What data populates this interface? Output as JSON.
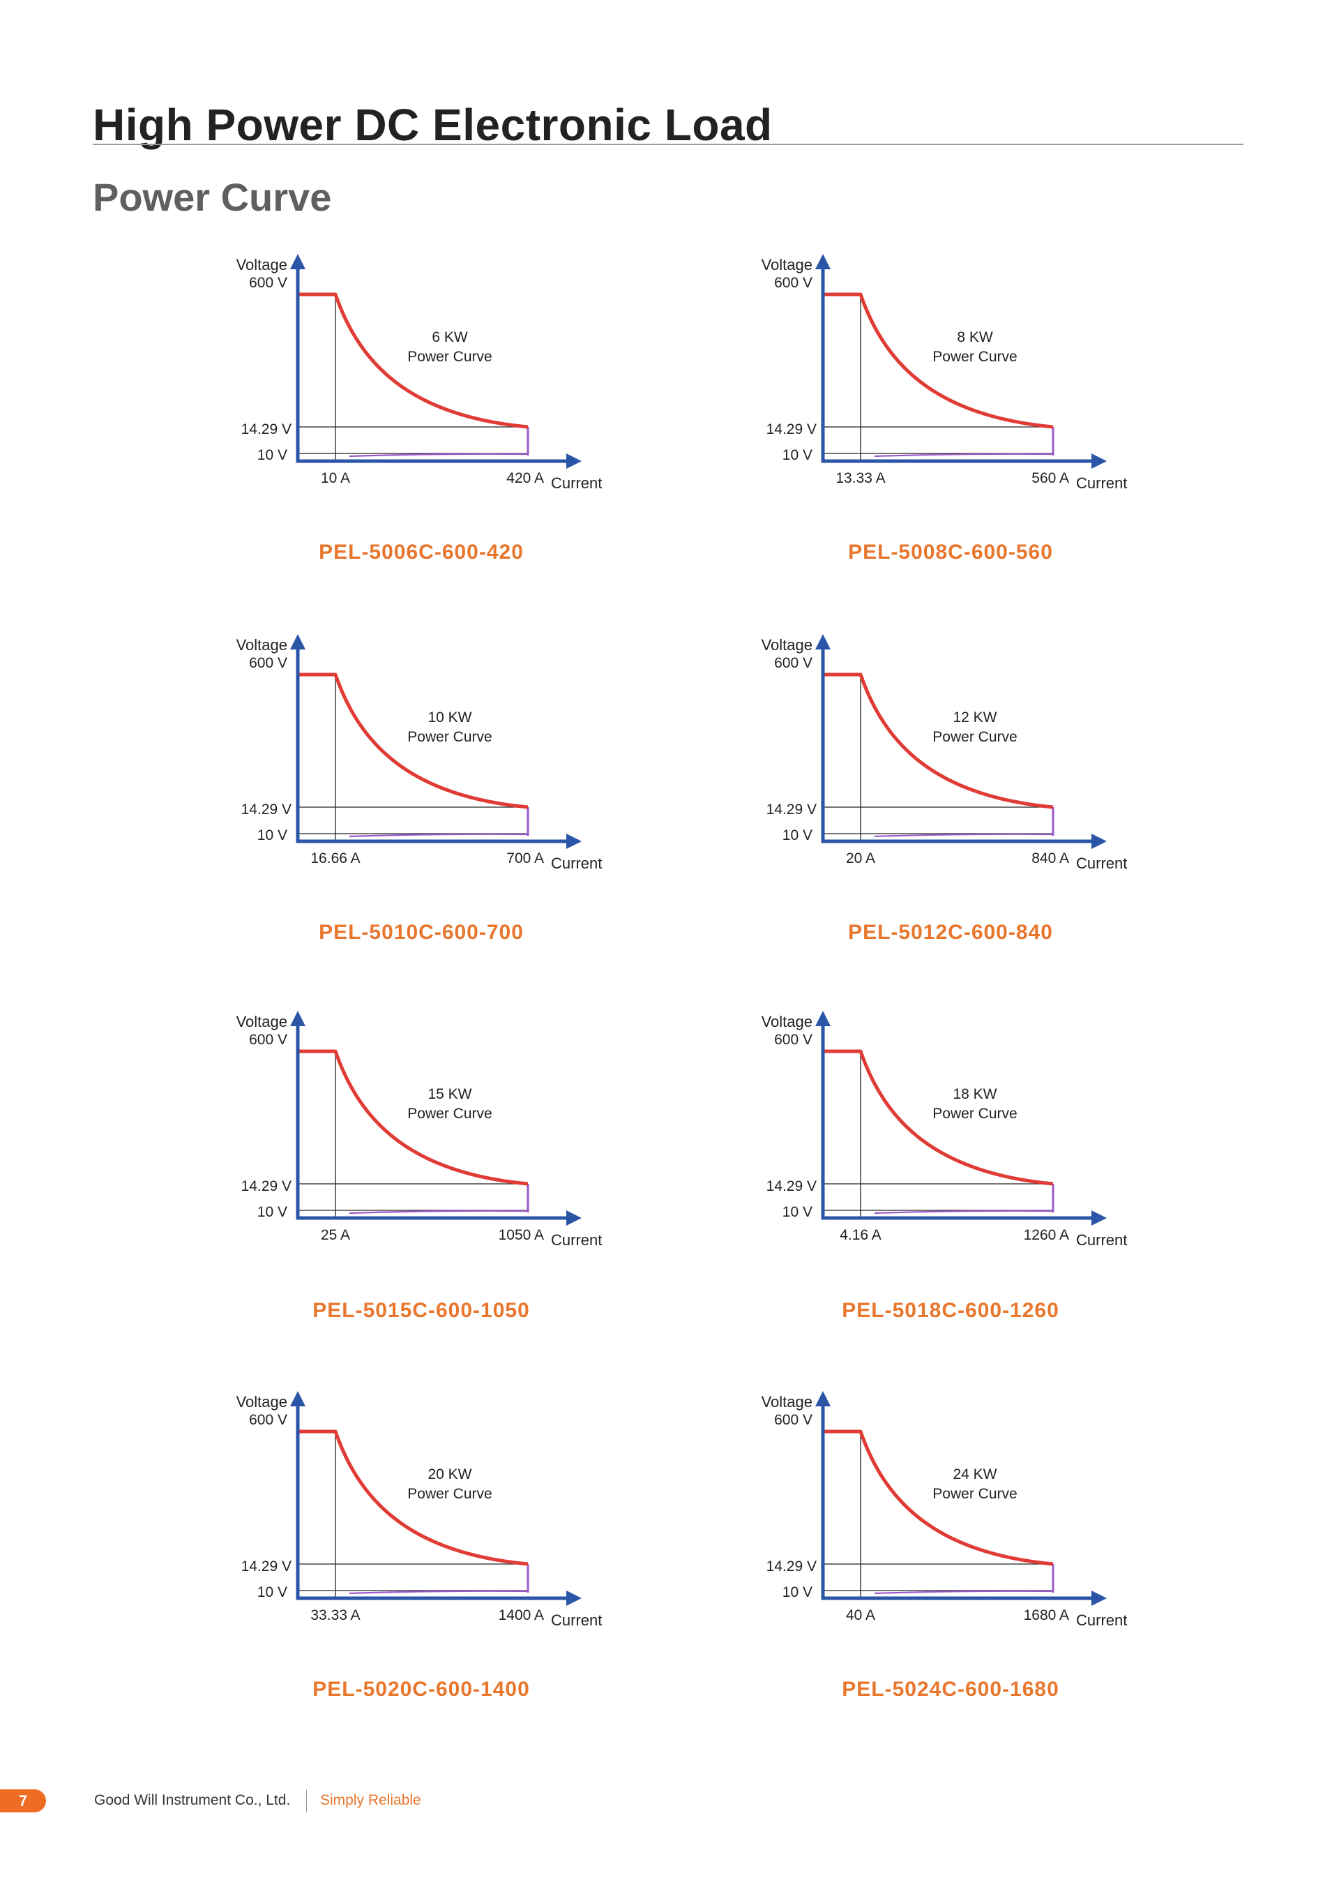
{
  "header": {
    "title": "High Power DC Electronic Load",
    "subtitle": "Power Curve"
  },
  "colors": {
    "axis": "#2b55a6",
    "curve": "#e03b35",
    "accent": "#e8762d",
    "low": "#9b59c8"
  },
  "axis_labels": {
    "voltage": "Voltage",
    "current": "Current",
    "curve_label": "Power Curve"
  },
  "charts": [
    {
      "model": "PEL-5006C-600-420",
      "power": "6 KW",
      "v_max": "600 V",
      "v_mid": "14.29 V",
      "v_min": "10 V",
      "i_min": "10 A",
      "i_max": "420 A"
    },
    {
      "model": "PEL-5008C-600-560",
      "power": "8 KW",
      "v_max": "600 V",
      "v_mid": "14.29 V",
      "v_min": "10 V",
      "i_min": "13.33 A",
      "i_max": "560 A"
    },
    {
      "model": "PEL-5010C-600-700",
      "power": "10 KW",
      "v_max": "600 V",
      "v_mid": "14.29 V",
      "v_min": "10 V",
      "i_min": "16.66 A",
      "i_max": "700 A"
    },
    {
      "model": "PEL-5012C-600-840",
      "power": "12 KW",
      "v_max": "600 V",
      "v_mid": "14.29 V",
      "v_min": "10 V",
      "i_min": "20 A",
      "i_max": "840 A"
    },
    {
      "model": "PEL-5015C-600-1050",
      "power": "15 KW",
      "v_max": "600 V",
      "v_mid": "14.29 V",
      "v_min": "10 V",
      "i_min": "25 A",
      "i_max": "1050 A"
    },
    {
      "model": "PEL-5018C-600-1260",
      "power": "18 KW",
      "v_max": "600 V",
      "v_mid": "14.29 V",
      "v_min": "10 V",
      "i_min": "4.16 A",
      "i_max": "1260 A"
    },
    {
      "model": "PEL-5020C-600-1400",
      "power": "20 KW",
      "v_max": "600 V",
      "v_mid": "14.29 V",
      "v_min": "10 V",
      "i_min": "33.33 A",
      "i_max": "1400 A"
    },
    {
      "model": "PEL-5024C-600-1680",
      "power": "24 KW",
      "v_max": "600 V",
      "v_mid": "14.29 V",
      "v_min": "10 V",
      "i_min": "40 A",
      "i_max": "1680 A"
    }
  ],
  "chart_data": [
    {
      "type": "line",
      "title": "6 KW Power Curve",
      "xlabel": "Current",
      "ylabel": "Voltage",
      "x": [
        10,
        420
      ],
      "y": [
        600,
        14.29
      ],
      "y_min": 10,
      "series": [
        {
          "name": "6 KW Power Curve",
          "x": [
            10,
            420
          ],
          "y": [
            600,
            14.29
          ]
        }
      ]
    },
    {
      "type": "line",
      "title": "8 KW Power Curve",
      "xlabel": "Current",
      "ylabel": "Voltage",
      "x": [
        13.33,
        560
      ],
      "y": [
        600,
        14.29
      ],
      "y_min": 10,
      "series": [
        {
          "name": "8 KW Power Curve",
          "x": [
            13.33,
            560
          ],
          "y": [
            600,
            14.29
          ]
        }
      ]
    },
    {
      "type": "line",
      "title": "10 KW Power Curve",
      "xlabel": "Current",
      "ylabel": "Voltage",
      "x": [
        16.66,
        700
      ],
      "y": [
        600,
        14.29
      ],
      "y_min": 10,
      "series": [
        {
          "name": "10 KW Power Curve",
          "x": [
            16.66,
            700
          ],
          "y": [
            600,
            14.29
          ]
        }
      ]
    },
    {
      "type": "line",
      "title": "12 KW Power Curve",
      "xlabel": "Current",
      "ylabel": "Voltage",
      "x": [
        20,
        840
      ],
      "y": [
        600,
        14.29
      ],
      "y_min": 10,
      "series": [
        {
          "name": "12 KW Power Curve",
          "x": [
            20,
            840
          ],
          "y": [
            600,
            14.29
          ]
        }
      ]
    },
    {
      "type": "line",
      "title": "15 KW Power Curve",
      "xlabel": "Current",
      "ylabel": "Voltage",
      "x": [
        25,
        1050
      ],
      "y": [
        600,
        14.29
      ],
      "y_min": 10,
      "series": [
        {
          "name": "15 KW Power Curve",
          "x": [
            25,
            1050
          ],
          "y": [
            600,
            14.29
          ]
        }
      ]
    },
    {
      "type": "line",
      "title": "18 KW Power Curve",
      "xlabel": "Current",
      "ylabel": "Voltage",
      "x": [
        4.16,
        1260
      ],
      "y": [
        600,
        14.29
      ],
      "y_min": 10,
      "series": [
        {
          "name": "18 KW Power Curve",
          "x": [
            4.16,
            1260
          ],
          "y": [
            600,
            14.29
          ]
        }
      ]
    },
    {
      "type": "line",
      "title": "20 KW Power Curve",
      "xlabel": "Current",
      "ylabel": "Voltage",
      "x": [
        33.33,
        1400
      ],
      "y": [
        600,
        14.29
      ],
      "y_min": 10,
      "series": [
        {
          "name": "20 KW Power Curve",
          "x": [
            33.33,
            1400
          ],
          "y": [
            600,
            14.29
          ]
        }
      ]
    },
    {
      "type": "line",
      "title": "24 KW Power Curve",
      "xlabel": "Current",
      "ylabel": "Voltage",
      "x": [
        40,
        1680
      ],
      "y": [
        600,
        14.29
      ],
      "y_min": 10,
      "series": [
        {
          "name": "24 KW Power Curve",
          "x": [
            40,
            1680
          ],
          "y": [
            600,
            14.29
          ]
        }
      ]
    }
  ],
  "footer": {
    "page_number": "7",
    "company": "Good Will Instrument Co., Ltd.",
    "slogan": "Simply Reliable"
  }
}
